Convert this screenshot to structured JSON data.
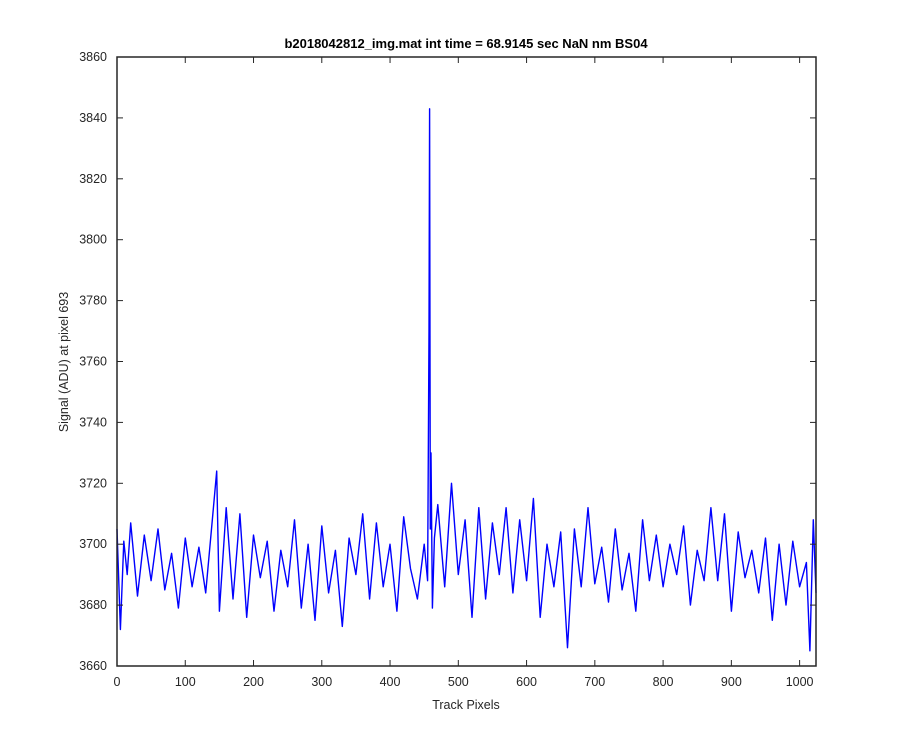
{
  "chart_data": {
    "type": "line",
    "title": "b2018042812_img.mat int time = 68.9145 sec  NaN nm BS04",
    "xlabel": "Track Pixels",
    "ylabel": "Signal (ADU) at pixel 693",
    "xlim": [
      0,
      1024
    ],
    "ylim": [
      3660,
      3860
    ],
    "xticks": [
      0,
      100,
      200,
      300,
      400,
      500,
      600,
      700,
      800,
      900,
      1000
    ],
    "yticks": [
      3660,
      3680,
      3700,
      3720,
      3740,
      3760,
      3780,
      3800,
      3820,
      3840,
      3860
    ],
    "grid": false,
    "line_color": "#0000ff",
    "axis_color": "#262626",
    "series": [
      {
        "x": [
          0,
          5,
          10,
          15,
          20,
          30,
          40,
          50,
          60,
          70,
          80,
          90,
          100,
          110,
          120,
          130,
          140,
          146,
          150,
          160,
          170,
          180,
          190,
          200,
          210,
          220,
          230,
          240,
          250,
          260,
          270,
          280,
          290,
          300,
          310,
          320,
          330,
          340,
          350,
          360,
          370,
          380,
          390,
          400,
          410,
          420,
          430,
          440,
          450,
          455,
          457,
          458,
          459,
          460,
          462,
          465,
          470,
          480,
          490,
          500,
          510,
          520,
          530,
          540,
          550,
          560,
          570,
          580,
          590,
          600,
          610,
          620,
          630,
          640,
          650,
          660,
          670,
          680,
          690,
          700,
          710,
          720,
          730,
          740,
          750,
          760,
          770,
          780,
          790,
          800,
          810,
          820,
          830,
          840,
          850,
          860,
          870,
          880,
          890,
          900,
          910,
          920,
          930,
          940,
          950,
          960,
          970,
          980,
          990,
          1000,
          1010,
          1015,
          1020,
          1024
        ],
        "y": [
          3705,
          3672,
          3701,
          3690,
          3707,
          3683,
          3703,
          3688,
          3705,
          3685,
          3697,
          3679,
          3702,
          3686,
          3699,
          3684,
          3709,
          3724,
          3678,
          3712,
          3682,
          3710,
          3676,
          3703,
          3689,
          3701,
          3678,
          3698,
          3686,
          3708,
          3679,
          3700,
          3675,
          3706,
          3684,
          3698,
          3673,
          3702,
          3690,
          3710,
          3682,
          3707,
          3686,
          3700,
          3678,
          3709,
          3692,
          3682,
          3700,
          3688,
          3770,
          3843,
          3705,
          3730,
          3679,
          3702,
          3713,
          3686,
          3720,
          3690,
          3708,
          3676,
          3712,
          3682,
          3707,
          3690,
          3712,
          3684,
          3708,
          3688,
          3715,
          3676,
          3700,
          3686,
          3704,
          3666,
          3705,
          3686,
          3712,
          3687,
          3699,
          3681,
          3705,
          3685,
          3697,
          3678,
          3708,
          3688,
          3703,
          3686,
          3700,
          3690,
          3706,
          3680,
          3698,
          3688,
          3712,
          3688,
          3710,
          3678,
          3704,
          3689,
          3698,
          3684,
          3702,
          3675,
          3700,
          3680,
          3701,
          3686,
          3694,
          3665,
          3708,
          3684
        ]
      }
    ]
  }
}
